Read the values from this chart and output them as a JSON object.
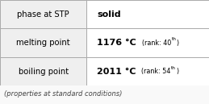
{
  "rows": [
    {
      "label": "phase at STP",
      "value": "solid",
      "rank_num": "",
      "rank_ord": ""
    },
    {
      "label": "melting point",
      "value": "1176 °C",
      "rank_num": "40",
      "rank_ord": "th"
    },
    {
      "label": "boiling point",
      "value": "2011 °C",
      "rank_num": "54",
      "rank_ord": "th"
    }
  ],
  "footer": "(properties at standard conditions)",
  "bg_color": "#f9f9f9",
  "border_color": "#aaaaaa",
  "left_col_color": "#efefef",
  "right_col_color": "#ffffff",
  "text_color": "#000000",
  "footer_color": "#444444",
  "figsize": [
    2.59,
    1.29
  ],
  "dpi": 100
}
